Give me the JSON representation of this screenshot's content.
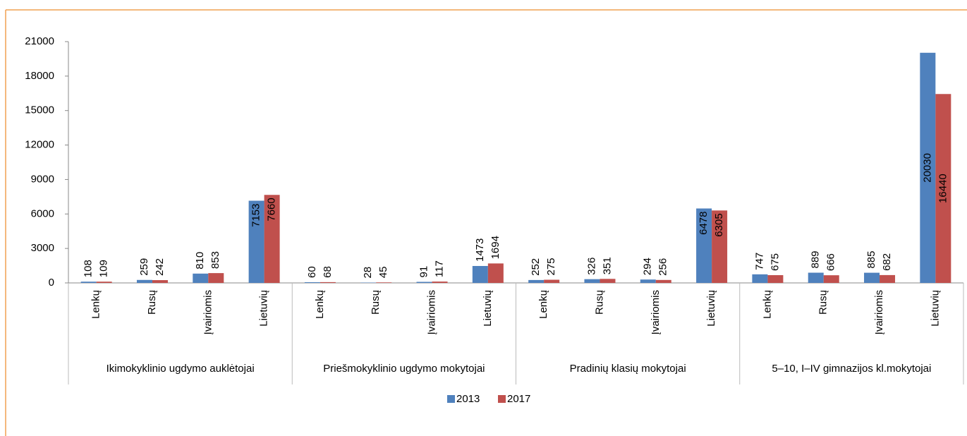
{
  "chart_data": {
    "type": "bar",
    "categories": [
      "Lenkų",
      "Rusų",
      "Įvairiomis",
      "Lietuvių",
      "Lenkų",
      "Rusų",
      "Įvairiomis",
      "Lietuvių",
      "Lenkų",
      "Rusų",
      "Įvairiomis",
      "Lietuvių",
      "Lenkų",
      "Rusų",
      "Įvairiomis",
      "Lietuvių"
    ],
    "groups": [
      "Ikimokyklinio ugdymo auklėtojai",
      "Priešmokyklinio ugdymo mokytojai",
      "Pradinių klasių mokytojai",
      "5–10, I–IV gimnazijos kl.mokytojai"
    ],
    "series": [
      {
        "name": "2013",
        "color": "#4f81bd",
        "values": [
          108,
          259,
          810,
          7153,
          60,
          28,
          91,
          1473,
          252,
          326,
          294,
          6478,
          747,
          889,
          885,
          20030
        ]
      },
      {
        "name": "2017",
        "color": "#c0504d",
        "values": [
          109,
          242,
          853,
          7660,
          68,
          45,
          117,
          1694,
          275,
          351,
          256,
          6305,
          675,
          666,
          682,
          16440
        ]
      }
    ],
    "ylim": [
      0,
      21000
    ],
    "yticks": [
      0,
      3000,
      6000,
      9000,
      12000,
      15000,
      18000,
      21000
    ],
    "grid": false,
    "legend": "bottom"
  }
}
